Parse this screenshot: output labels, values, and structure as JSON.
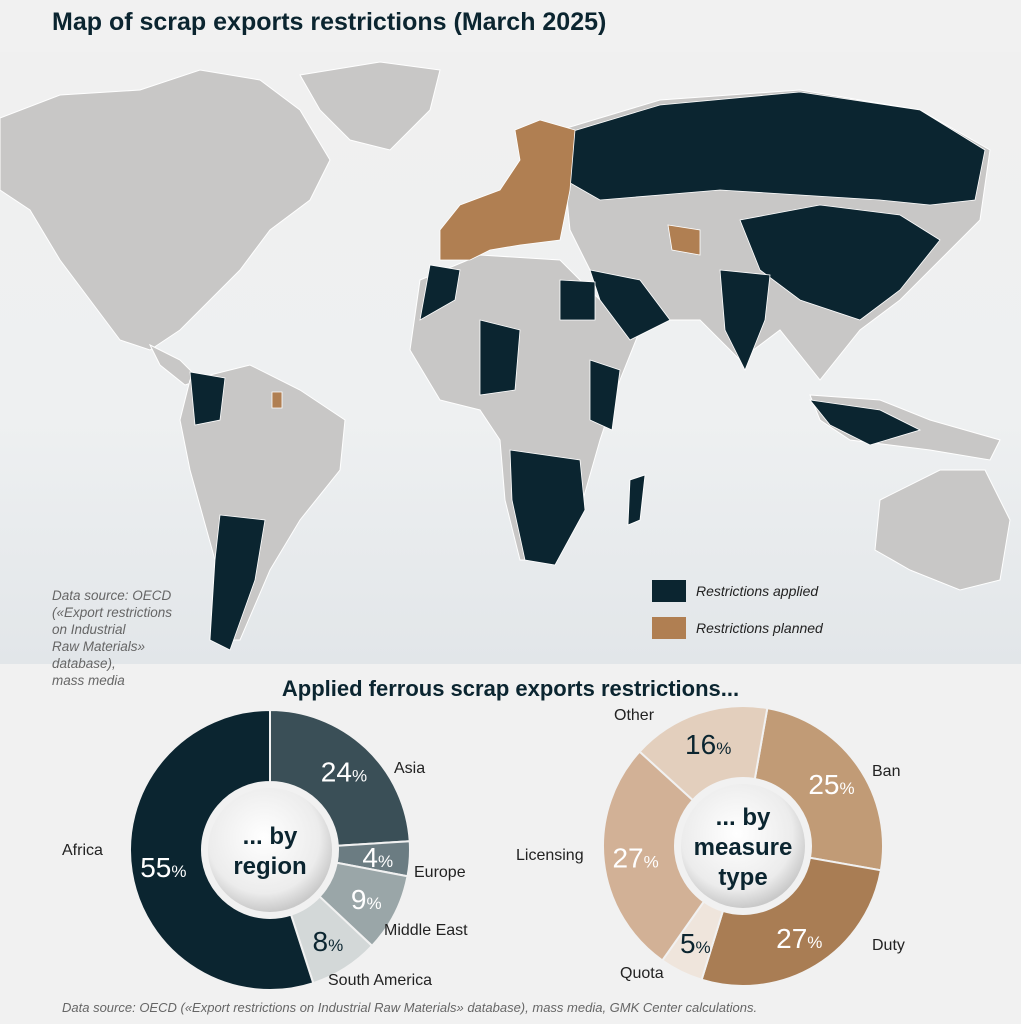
{
  "title": "Map of scrap exports restrictions (March 2025)",
  "map": {
    "source_note": [
      "Data source: OECD",
      "(«Export restrictions",
      "on Industrial",
      "Raw Materials»",
      "database),",
      "mass media"
    ],
    "legend": [
      {
        "label": "Restrictions applied",
        "color": "#0b2530"
      },
      {
        "label": "Restrictions planned",
        "color": "#b07f52"
      }
    ],
    "land_color": "#c8c7c6"
  },
  "subtitle": "Applied ferrous scrap exports restrictions...",
  "chart_data": [
    {
      "type": "pie",
      "donut": true,
      "center_label": [
        "... by",
        "region"
      ],
      "categories": [
        "Asia",
        "Europe",
        "Middle East",
        "South America",
        "Africa"
      ],
      "values": [
        24,
        4,
        9,
        8,
        55
      ],
      "unit": "%",
      "colors": [
        "#3a4f57",
        "#6b7c82",
        "#9aa6a8",
        "#d3d8d8",
        "#0b2530"
      ],
      "label_colors": [
        "#ffffff",
        "#ffffff",
        "#ffffff",
        "#0b2530",
        "#ffffff"
      ]
    },
    {
      "type": "pie",
      "donut": true,
      "center_label": [
        "... by",
        "measure",
        "type"
      ],
      "categories": [
        "Ban",
        "Duty",
        "Quota",
        "Licensing",
        "Other"
      ],
      "values": [
        25,
        27,
        5,
        27,
        16
      ],
      "unit": "%",
      "colors": [
        "#c19b76",
        "#a97d54",
        "#efe5dc",
        "#d2b196",
        "#e3cfbd"
      ],
      "label_colors": [
        "#ffffff",
        "#ffffff",
        "#0b2530",
        "#ffffff",
        "#0b2530"
      ]
    }
  ],
  "source_bottom": "Data source: OECD («Export restrictions on Industrial Raw Materials» database), mass media, GMK Center calculations."
}
